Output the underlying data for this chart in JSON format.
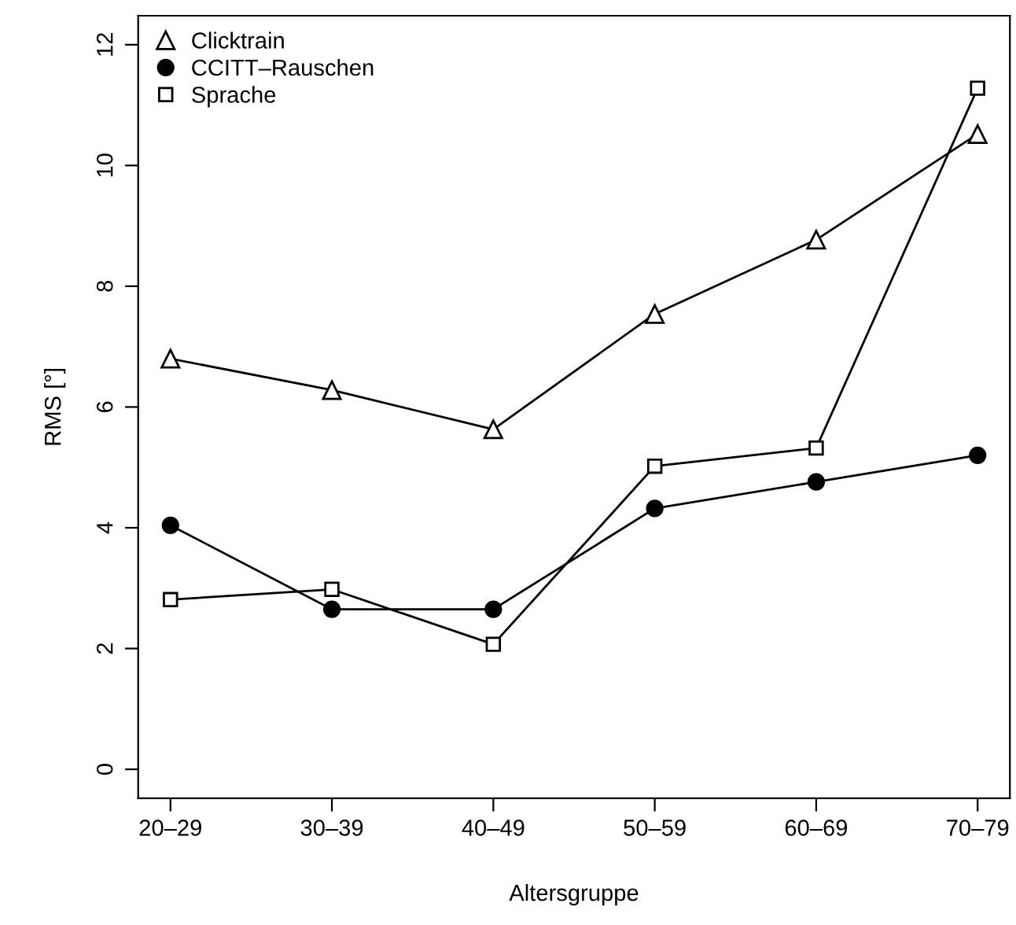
{
  "chart_data": {
    "type": "line",
    "xlabel": "Altersgruppe",
    "ylabel": "RMS [°]",
    "categories": [
      "20–29",
      "30–39",
      "40–49",
      "50–59",
      "60–69",
      "70–79"
    ],
    "series": [
      {
        "name": "Clicktrain",
        "color": "#000000",
        "marker": "triangle",
        "values": [
          6.8,
          6.28,
          5.63,
          7.54,
          8.77,
          10.52
        ]
      },
      {
        "name": "CCITT–Rauschen",
        "color": "#000000",
        "marker": "circle",
        "values": [
          4.04,
          2.65,
          2.65,
          4.32,
          4.76,
          5.2
        ]
      },
      {
        "name": "Sprache",
        "color": "#000000",
        "marker": "square",
        "values": [
          2.81,
          2.98,
          2.07,
          5.02,
          5.32,
          11.28
        ]
      }
    ],
    "ylim": [
      -0.48,
      12.48
    ],
    "yticks": [
      0,
      2,
      4,
      6,
      8,
      10,
      12
    ],
    "grid": false,
    "legend": "top left",
    "line_style": "solid"
  }
}
